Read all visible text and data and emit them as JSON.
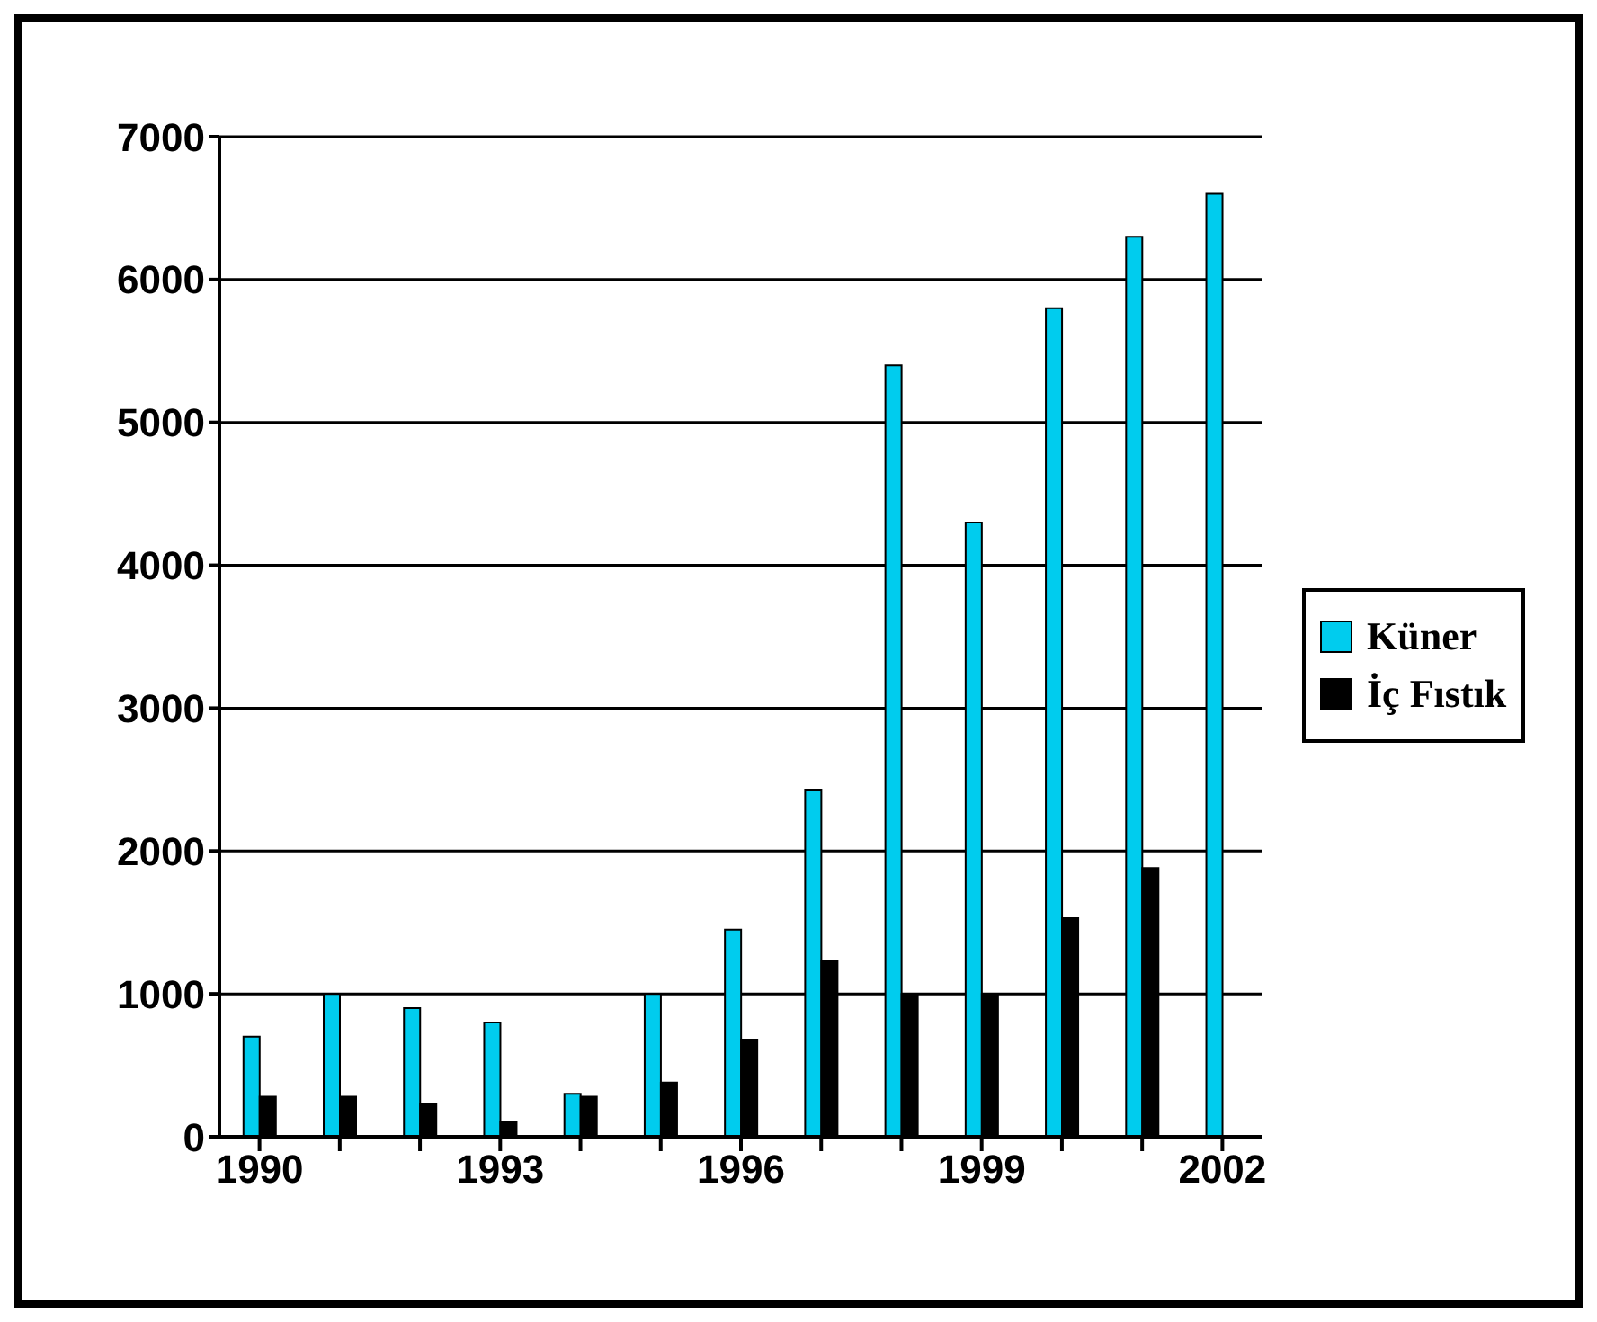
{
  "chart_data": {
    "type": "bar",
    "categories": [
      "1990",
      null,
      null,
      "1993",
      null,
      null,
      "1996",
      null,
      null,
      "1999",
      null,
      null,
      "2002"
    ],
    "series": [
      {
        "name": "Küner",
        "color": "#00ccee",
        "values": [
          700,
          1000,
          900,
          800,
          300,
          1000,
          1450,
          2430,
          5400,
          4300,
          5800,
          6300,
          6600
        ]
      },
      {
        "name": "İç Fıstık",
        "color": "#000000",
        "values": [
          280,
          280,
          230,
          100,
          280,
          380,
          680,
          1230,
          1000,
          1000,
          1530,
          1880,
          null
        ]
      }
    ],
    "ylim": [
      0,
      7000
    ],
    "yticks": [
      0,
      1000,
      2000,
      3000,
      4000,
      5000,
      6000,
      7000
    ],
    "grid": "y",
    "legend": "right"
  }
}
